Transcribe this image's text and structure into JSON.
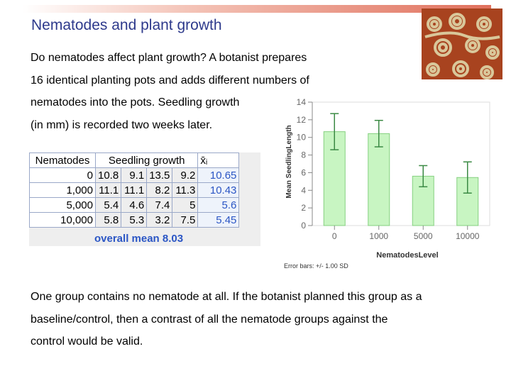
{
  "slide": {
    "title": "Nematodes and plant growth",
    "intro_lines": [
      "Do nematodes affect plant growth? A botanist prepares",
      "16 identical planting pots and adds different numbers of",
      "nematodes into the pots. Seedling growth",
      "(in mm) is recorded two weeks later."
    ],
    "outro_lines": [
      "One group contains no nematode at all. If the botanist planned this group as a",
      "baseline/control, then a contrast of all the nematode groups against the",
      "control would be valid."
    ]
  },
  "table": {
    "header_nematodes": "Nematodes",
    "header_growth": "Seedling growth",
    "header_mean": "x̄ᵢ",
    "rows": [
      {
        "nematodes": "0",
        "values": [
          "10.8",
          "9.1",
          "13.5",
          "9.2"
        ],
        "mean": "10.65"
      },
      {
        "nematodes": "1,000",
        "values": [
          "11.1",
          "11.1",
          "8.2",
          "11.3"
        ],
        "mean": "10.43"
      },
      {
        "nematodes": "5,000",
        "values": [
          "5.4",
          "4.6",
          "7.4",
          "5"
        ],
        "mean": "5.6"
      },
      {
        "nematodes": "10,000",
        "values": [
          "5.8",
          "5.3",
          "3.2",
          "7.5"
        ],
        "mean": "5.45"
      }
    ],
    "overall_mean": "overall mean 8.03"
  },
  "chart_data": {
    "type": "bar",
    "categories": [
      "0",
      "1000",
      "5000",
      "10000"
    ],
    "values": [
      10.65,
      10.43,
      5.6,
      5.45
    ],
    "error_sd": [
      2.05,
      1.5,
      1.2,
      1.77
    ],
    "xlabel": "NematodesLevel",
    "ylabel": "Mean SeedlingLength",
    "ylim": [
      0,
      14
    ],
    "yticks": [
      0,
      2,
      4,
      6,
      8,
      10,
      12,
      14
    ],
    "note": "Error bars: +/- 1.00 SD",
    "grid": false,
    "colors": {
      "bar_fill": "#c8f5c2",
      "bar_stroke": "#86d080",
      "error": "#3b8a44",
      "axis": "#888888"
    }
  }
}
